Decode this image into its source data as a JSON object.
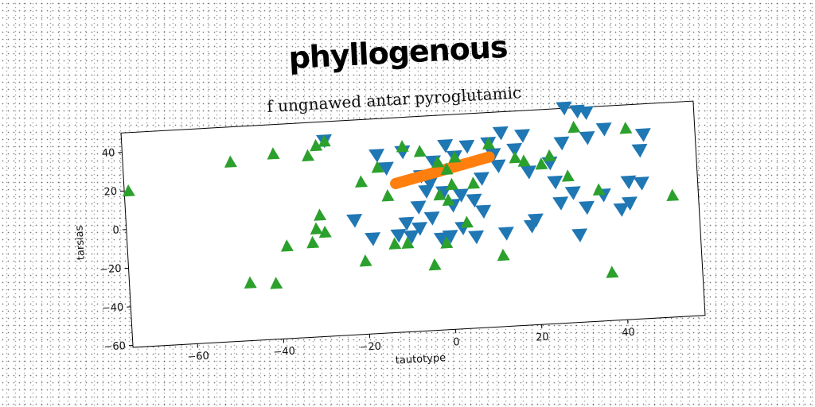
{
  "headline": "phyllogenous",
  "chart_data": {
    "type": "scatter",
    "title": "f ungnawed antar pyroglutamic",
    "xlabel": "tautotype",
    "ylabel": "tarsias",
    "xlim": [
      -75,
      58
    ],
    "ylim": [
      -61,
      50
    ],
    "xticks": [
      -60,
      -40,
      -20,
      0,
      20,
      40
    ],
    "yticks": [
      -60,
      -40,
      -20,
      0,
      20,
      40
    ],
    "grid": false,
    "colors": {
      "blue": "#1f77b4",
      "orange": "#ff7f0e",
      "green": "#2ca02c"
    },
    "series": [
      {
        "marker": "triangle-down",
        "color": "#1f77b4",
        "points": [
          [
            -28,
            40
          ],
          [
            -16,
            31
          ],
          [
            -14,
            24
          ],
          [
            -10,
            32
          ],
          [
            -6,
            19
          ],
          [
            -4,
            15
          ],
          [
            -3,
            26
          ],
          [
            0,
            34
          ],
          [
            2,
            28
          ],
          [
            5,
            33
          ],
          [
            -1,
            10
          ],
          [
            3,
            8
          ],
          [
            -7,
            3
          ],
          [
            -5,
            11
          ],
          [
            -4,
            -3
          ],
          [
            -7,
            -8
          ],
          [
            -9,
            -12
          ],
          [
            -12,
            -11
          ],
          [
            -18,
            -12
          ],
          [
            -22,
            -2
          ],
          [
            0,
            -13
          ],
          [
            6,
            -14
          ],
          [
            13,
            -13
          ],
          [
            19,
            -10
          ],
          [
            8,
            -1
          ],
          [
            1,
            3
          ],
          [
            8,
            16
          ],
          [
            11,
            28
          ],
          [
            13,
            39
          ],
          [
            18,
            37
          ],
          [
            12,
            22
          ],
          [
            19,
            18
          ],
          [
            24,
            22
          ],
          [
            25,
            12
          ],
          [
            26,
            1
          ],
          [
            29,
            6
          ],
          [
            32,
            -2
          ],
          [
            36,
            4
          ],
          [
            40,
            -4
          ],
          [
            42,
            -1
          ],
          [
            42,
            10
          ],
          [
            45,
            26
          ],
          [
            46,
            34
          ],
          [
            45,
            9
          ],
          [
            37,
            38
          ],
          [
            33,
            34
          ],
          [
            27,
            32
          ],
          [
            33,
            47
          ],
          [
            31,
            48
          ],
          [
            28,
            50
          ],
          [
            20,
            -7
          ],
          [
            -2,
            -14
          ],
          [
            3,
            -9
          ],
          [
            6,
            5
          ],
          [
            -10,
            -5
          ],
          [
            10,
            34
          ],
          [
            16,
            30
          ],
          [
            30,
            -16
          ]
        ]
      },
      {
        "marker": "circle-line",
        "color": "#ff7f0e",
        "points": [
          [
            -12,
            16
          ],
          [
            -10,
            17
          ],
          [
            -8,
            18
          ],
          [
            -6,
            19
          ],
          [
            -4,
            20
          ],
          [
            -2,
            21
          ],
          [
            0,
            22
          ],
          [
            2,
            23
          ],
          [
            4,
            24
          ],
          [
            6,
            25
          ],
          [
            8,
            26
          ],
          [
            10,
            27
          ]
        ]
      },
      {
        "marker": "triangle-up",
        "color": "#2ca02c",
        "points": [
          [
            -74,
            20
          ],
          [
            -50,
            32
          ],
          [
            -40,
            35
          ],
          [
            -32,
            33
          ],
          [
            -30,
            38
          ],
          [
            -28,
            40
          ],
          [
            -20,
            18
          ],
          [
            -16,
            25
          ],
          [
            -14,
            10
          ],
          [
            -10,
            35
          ],
          [
            -6,
            32
          ],
          [
            -2,
            26
          ],
          [
            0,
            22
          ],
          [
            2,
            28
          ],
          [
            1,
            14
          ],
          [
            -2,
            9
          ],
          [
            0,
            6
          ],
          [
            4,
            -6
          ],
          [
            6,
            14
          ],
          [
            10,
            34
          ],
          [
            16,
            26
          ],
          [
            18,
            24
          ],
          [
            22,
            22
          ],
          [
            24,
            26
          ],
          [
            28,
            15
          ],
          [
            30,
            40
          ],
          [
            35,
            7
          ],
          [
            42,
            38
          ],
          [
            52,
            2
          ],
          [
            37,
            -36
          ],
          [
            -47,
            -31
          ],
          [
            -41,
            -32
          ],
          [
            -38,
            -13
          ],
          [
            -32,
            -12
          ],
          [
            -31,
            -5
          ],
          [
            -29,
            -7
          ],
          [
            -30,
            2
          ],
          [
            -20,
            -23
          ],
          [
            -13,
            -15
          ],
          [
            -10,
            -15
          ],
          [
            -4,
            -27
          ],
          [
            -1,
            -16
          ],
          [
            12,
            -24
          ]
        ]
      }
    ]
  }
}
